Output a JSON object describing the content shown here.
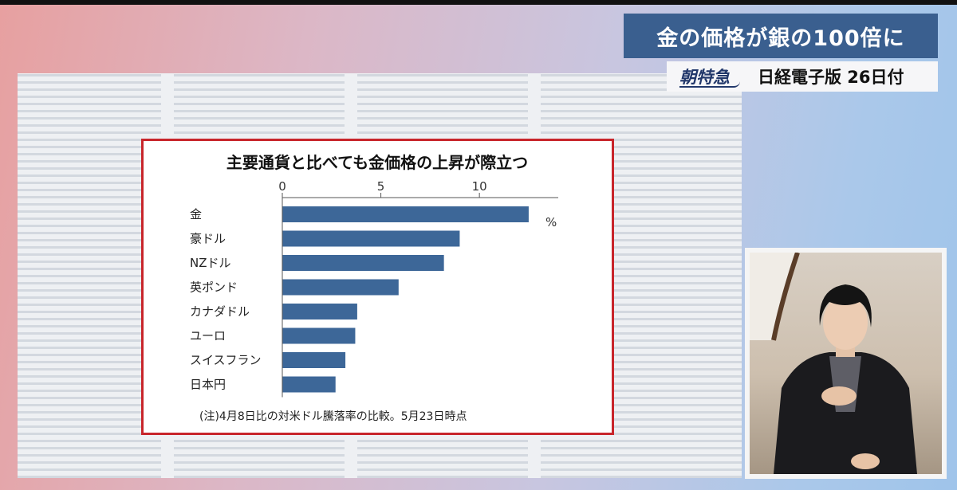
{
  "header": {
    "title": "金の価格が銀の100倍に",
    "source_logo": "朝特急",
    "source_text": "日経電子版 26日付"
  },
  "chart_data": {
    "type": "bar",
    "orientation": "horizontal",
    "title": "主要通貨と比べても金価格の上昇が際立つ",
    "unit_label": "%",
    "categories": [
      "金",
      "豪ドル",
      "NZドル",
      "英ポンド",
      "カナダドル",
      "ユーロ",
      "スイスフラン",
      "日本円"
    ],
    "values": [
      12.5,
      9.0,
      8.2,
      5.9,
      3.8,
      3.7,
      3.2,
      2.7
    ],
    "xlim": [
      0,
      14
    ],
    "xticks": [
      0,
      5,
      10
    ],
    "bar_color": "#3d6798",
    "note": "(注)4月8日比の対米ドル騰落率の比較。5月23日時点",
    "grid": false
  },
  "colors": {
    "accent_title": "#3a5f8f",
    "frame_red": "#c8252b"
  }
}
